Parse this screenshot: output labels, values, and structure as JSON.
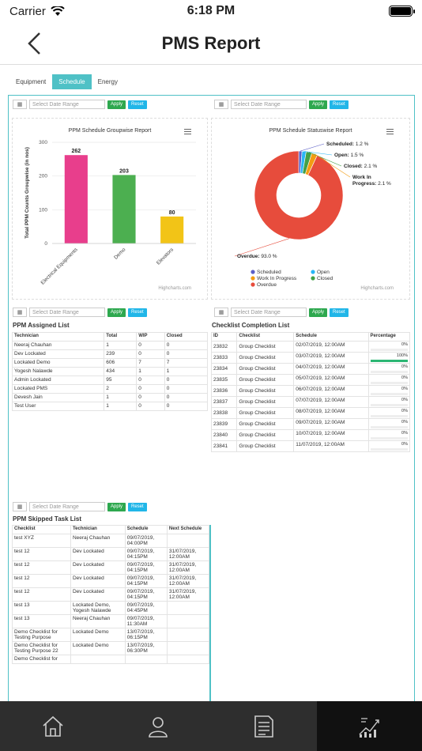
{
  "status": {
    "carrier": "Carrier",
    "time": "6:18 PM"
  },
  "nav": {
    "title": "PMS Report"
  },
  "tabs": [
    {
      "label": "Equipment"
    },
    {
      "label": "Schedule"
    },
    {
      "label": "Energy"
    }
  ],
  "filter": {
    "placeholder": "Select Date Range",
    "apply": "Apply",
    "reset": "Reset"
  },
  "groupwise_chart": {
    "title": "PPM Schedule Groupwise Report",
    "credit": "Highcharts.com"
  },
  "statuswise_chart": {
    "title": "PPM Schedule Statuswise Report",
    "credit": "Highcharts.com"
  },
  "chart_data": [
    {
      "type": "bar",
      "title": "PPM Schedule Groupwise Report",
      "ylabel": "Total PPM Counts Groupwise (in nos)",
      "categories": [
        "Electrical Equipments",
        "Demo",
        "Elevators"
      ],
      "values": [
        262,
        203,
        80
      ],
      "colors": [
        "#e83e8c",
        "#4caf50",
        "#f2c417"
      ],
      "ylim": [
        0,
        300
      ],
      "yticks": [
        0,
        100,
        200,
        300
      ]
    },
    {
      "type": "pie",
      "title": "PPM Schedule Statuswise Report",
      "slices": [
        {
          "name": "Scheduled",
          "label": "Scheduled",
          "value": 1.2,
          "color": "#5b5fc7"
        },
        {
          "name": "Open",
          "label": "Open",
          "value": 1.5,
          "color": "#29b6f6"
        },
        {
          "name": "Closed",
          "label": "Closed",
          "value": 2.1,
          "color": "#43a047"
        },
        {
          "name": "Work In Progress",
          "label": "Work In Progress",
          "value": 2.1,
          "color": "#f39c12"
        },
        {
          "name": "Overdue",
          "label": "Overdue",
          "value": 93.0,
          "color": "#e74c3c"
        }
      ],
      "data_labels": [
        "Scheduled: 1.2 %",
        "Open: 1.5 %",
        "Closed: 2.1 %",
        "Work In Progress: 2.1 %",
        "Overdue: 93.0 %"
      ],
      "legend_placement": "bottom",
      "legend": [
        "Scheduled",
        "Open",
        "Work In Progress",
        "Closed",
        "Overdue"
      ]
    }
  ],
  "assigned": {
    "title": "PPM Assigned List",
    "headers": [
      "Technician",
      "Total",
      "WIP",
      "Closed"
    ],
    "rows": [
      [
        "Neeraj Chauhan",
        "1",
        "0",
        "0"
      ],
      [
        "Dev Lockated",
        "239",
        "0",
        "0"
      ],
      [
        "Lockated Demo",
        "606",
        "7",
        "7"
      ],
      [
        "Yogesh Nalawde",
        "434",
        "1",
        "1"
      ],
      [
        "Admin Lockated",
        "95",
        "0",
        "0"
      ],
      [
        "Lockated PMS",
        "2",
        "0",
        "0"
      ],
      [
        "Devesh Jain",
        "1",
        "0",
        "0"
      ],
      [
        "Test User",
        "1",
        "0",
        "0"
      ]
    ]
  },
  "completion": {
    "title": "Checklist Completion List",
    "headers": [
      "ID",
      "Checklist",
      "Schedule",
      "Percentage"
    ],
    "rows": [
      {
        "id": "23832",
        "checklist": "Group Checklist",
        "schedule": "02/07/2019, 12:00AM",
        "pct": "0%",
        "fill": 0
      },
      {
        "id": "23833",
        "checklist": "Group Checklist",
        "schedule": "03/07/2019, 12:00AM",
        "pct": "100%",
        "fill": 100
      },
      {
        "id": "23834",
        "checklist": "Group Checklist",
        "schedule": "04/07/2019, 12:00AM",
        "pct": "0%",
        "fill": 0
      },
      {
        "id": "23835",
        "checklist": "Group Checklist",
        "schedule": "05/07/2019, 12:00AM",
        "pct": "0%",
        "fill": 0
      },
      {
        "id": "23836",
        "checklist": "Group Checklist",
        "schedule": "06/07/2019, 12:00AM",
        "pct": "0%",
        "fill": 0
      },
      {
        "id": "23837",
        "checklist": "Group Checklist",
        "schedule": "07/07/2019, 12:00AM",
        "pct": "0%",
        "fill": 0
      },
      {
        "id": "23838",
        "checklist": "Group Checklist",
        "schedule": "08/07/2019, 12:00AM",
        "pct": "0%",
        "fill": 0
      },
      {
        "id": "23839",
        "checklist": "Group Checklist",
        "schedule": "09/07/2019, 12:00AM",
        "pct": "0%",
        "fill": 0
      },
      {
        "id": "23840",
        "checklist": "Group Checklist",
        "schedule": "10/07/2019, 12:00AM",
        "pct": "0%",
        "fill": 0
      },
      {
        "id": "23841",
        "checklist": "Group Checklist",
        "schedule": "11/07/2019, 12:00AM",
        "pct": "0%",
        "fill": 0
      }
    ]
  },
  "skipped": {
    "title": "PPM Skipped Task List",
    "headers": [
      "Checklist",
      "Technician",
      "Schedule",
      "Next Schedule"
    ],
    "rows": [
      [
        "test XYZ",
        "Neeraj Chauhan",
        "09/07/2019, 04:00PM",
        ""
      ],
      [
        "test 12",
        "Dev Lockated",
        "09/07/2019, 04:15PM",
        "31/07/2019, 12:00AM"
      ],
      [
        "test 12",
        "Dev Lockated",
        "09/07/2019, 04:15PM",
        "31/07/2019, 12:00AM"
      ],
      [
        "test 12",
        "Dev Lockated",
        "09/07/2019, 04:15PM",
        "31/07/2019, 12:00AM"
      ],
      [
        "test 12",
        "Dev Lockated",
        "09/07/2019, 04:15PM",
        "31/07/2019, 12:00AM"
      ],
      [
        "test 13",
        "Lockated Demo, Yogesh Nalawde",
        "09/07/2019, 04:45PM",
        ""
      ],
      [
        "test 13",
        "Neeraj Chauhan",
        "09/07/2019, 11:30AM",
        ""
      ],
      [
        "Demo Checklist for Testing Purpose",
        "Lockated Demo",
        "13/07/2019, 06:15PM",
        ""
      ],
      [
        "Demo Checklist for Testing Purpose 22",
        "Lockated Demo",
        "13/07/2019, 06:30PM",
        ""
      ],
      [
        "Demo Checklist for",
        "",
        "",
        ""
      ]
    ]
  },
  "tabbar": [
    {
      "icon": "home-icon"
    },
    {
      "icon": "profile-icon"
    },
    {
      "icon": "report-icon"
    },
    {
      "icon": "analytics-icon",
      "active": true
    }
  ]
}
